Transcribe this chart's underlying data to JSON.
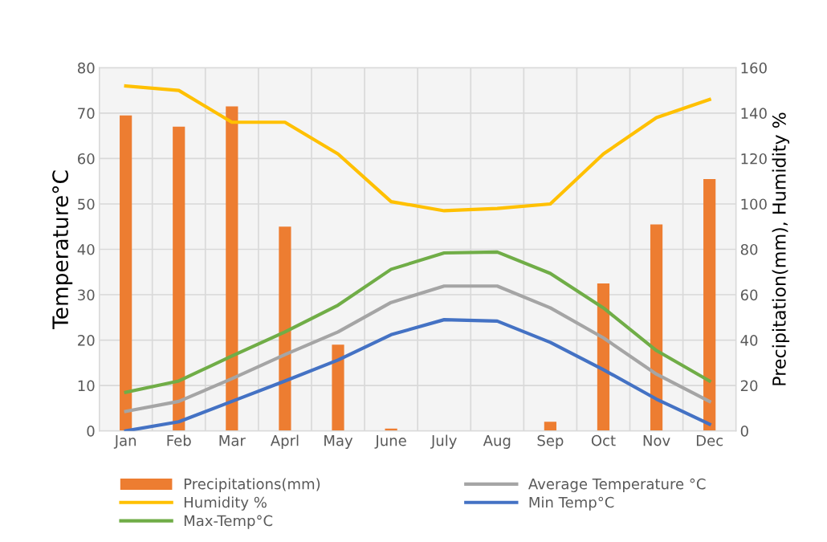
{
  "chart_data": {
    "type": "line",
    "ylabel": "Temperature°C",
    "y2label": "Precipitation(mm), Humidity %",
    "categories": [
      "Jan",
      "Feb",
      "Mar",
      "Aprl",
      "May",
      "June",
      "July",
      "Aug",
      "Sep",
      "Oct",
      "Nov",
      "Dec"
    ],
    "series": [
      {
        "name": "Precipitations(mm)",
        "type": "bar",
        "axis": "y2",
        "color": "#ed7d31",
        "values": [
          139,
          134,
          143,
          90,
          38,
          1,
          0,
          0,
          4,
          65,
          91,
          111
        ]
      },
      {
        "name": "Average Temperature °C",
        "color": "#a5a5a5",
        "values": [
          4.3,
          6.5,
          11.5,
          16.8,
          21.8,
          28.3,
          31.9,
          31.9,
          27.1,
          20.5,
          12.5,
          6.5
        ]
      },
      {
        "name": "Humidity %",
        "axis": "y2",
        "color": "#ffc000",
        "values": [
          152,
          150,
          136,
          136,
          122,
          101,
          97,
          98,
          100,
          122,
          138,
          146
        ]
      },
      {
        "name": "Min Temp°C",
        "color": "#4472c4",
        "values": [
          0,
          2,
          6.5,
          11,
          15.6,
          21.2,
          24.5,
          24.2,
          19.5,
          13.5,
          7,
          1.5
        ]
      },
      {
        "name": "Max-Temp°C",
        "color": "#70ad47",
        "values": [
          8.5,
          11,
          16.5,
          21.8,
          27.7,
          35.6,
          39.2,
          39.4,
          34.7,
          27.1,
          17.7,
          11
        ]
      }
    ],
    "ylim": [
      0,
      80
    ],
    "yticks": [
      0,
      10,
      20,
      30,
      40,
      50,
      60,
      70,
      80
    ],
    "y2lim": [
      0,
      160
    ],
    "y2ticks": [
      0,
      20,
      40,
      60,
      80,
      100,
      120,
      140,
      160
    ],
    "grid": true,
    "legend": "bottom",
    "marker": "none",
    "line_style": "solid"
  }
}
